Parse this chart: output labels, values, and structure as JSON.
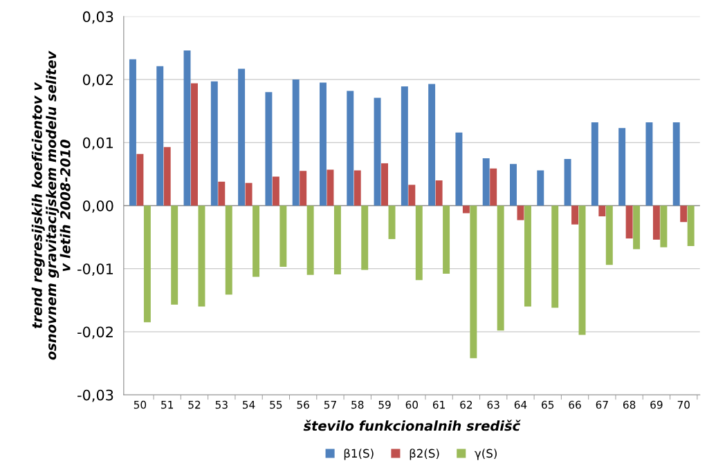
{
  "chart_data": {
    "type": "bar",
    "xlabel": "število funkcionalnih središč",
    "ylabel": "trend regresijskih koeficientov v\nosnovnem gravitacijskem modelu selitev\nv letih 2008-2010",
    "categories": [
      "50",
      "51",
      "52",
      "53",
      "54",
      "55",
      "56",
      "57",
      "58",
      "59",
      "60",
      "61",
      "62",
      "63",
      "64",
      "65",
      "66",
      "67",
      "68",
      "69",
      "70"
    ],
    "series": [
      {
        "name": "β1(S)",
        "color": "#4f81bd",
        "values": [
          0.0232,
          0.0221,
          0.0246,
          0.0197,
          0.0217,
          0.018,
          0.02,
          0.0195,
          0.0182,
          0.0171,
          0.0189,
          0.0193,
          0.0116,
          0.0075,
          0.0066,
          0.0056,
          0.0074,
          0.0132,
          0.0123,
          0.0132,
          0.0132
        ]
      },
      {
        "name": "β2(S)",
        "color": "#c0504d",
        "values": [
          0.0082,
          0.0093,
          0.0194,
          0.0038,
          0.0036,
          0.0046,
          0.0055,
          0.0057,
          0.0056,
          0.0067,
          0.0033,
          0.004,
          -0.0012,
          0.0059,
          -0.0023,
          0,
          -0.003,
          -0.0017,
          -0.0052,
          -0.0054,
          -0.0026
        ]
      },
      {
        "name": "γ(S)",
        "color": "#9bbb59",
        "values": [
          -0.0185,
          -0.0157,
          -0.016,
          -0.0141,
          -0.0113,
          -0.0097,
          -0.011,
          -0.0109,
          -0.0102,
          -0.0053,
          -0.0118,
          -0.0108,
          -0.0242,
          -0.0198,
          -0.016,
          -0.0162,
          -0.0205,
          -0.0094,
          -0.0069,
          -0.0066,
          -0.0064
        ]
      }
    ],
    "ylim": [
      -0.03,
      0.03
    ],
    "yticks": [
      {
        "value": -0.03,
        "label": "-0,03"
      },
      {
        "value": -0.02,
        "label": "-0,02"
      },
      {
        "value": -0.01,
        "label": "-0,01"
      },
      {
        "value": 0,
        "label": "0,00"
      },
      {
        "value": 0.01,
        "label": "0,01"
      },
      {
        "value": 0.02,
        "label": "0,02"
      },
      {
        "value": 0.03,
        "label": "0,03"
      }
    ],
    "grid": "y",
    "legend": "bottom"
  }
}
